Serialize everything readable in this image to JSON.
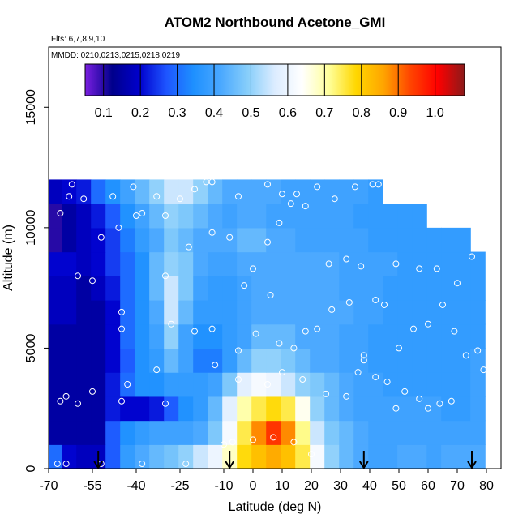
{
  "chart_data": {
    "type": "heatmap",
    "title": "ATOM2 Northbound Acetone_GMI",
    "flights_label": "Flts: 6,7,8,9,10",
    "dates_label": "MMDD: 0210,0213,0215,0218,0219",
    "xlabel": "Latitude (deg N)",
    "ylabel": "Altitude (m)",
    "xlim": [
      -70,
      85
    ],
    "ylim": [
      0,
      17500
    ],
    "x_ticks": [
      -70,
      -55,
      -40,
      -25,
      -10,
      0,
      10,
      20,
      30,
      40,
      50,
      60,
      70,
      80
    ],
    "x_tick_labels": [
      "-70",
      "-55",
      "-40",
      "-25",
      "-10",
      "0",
      "10",
      "20",
      "30",
      "40",
      "50",
      "60",
      "70",
      "80"
    ],
    "y_ticks": [
      0,
      5000,
      10000,
      15000
    ],
    "y_tick_labels": [
      "0",
      "5000",
      "10000",
      "15000"
    ],
    "colorbar": {
      "range": [
        0.05,
        1.08
      ],
      "ticks": [
        0.1,
        0.2,
        0.3,
        0.4,
        0.5,
        0.6,
        0.7,
        0.8,
        0.9,
        1.0
      ],
      "tick_labels": [
        "0.1",
        "0.2",
        "0.3",
        "0.4",
        "0.5",
        "0.6",
        "0.7",
        "0.8",
        "0.9",
        "1.0"
      ],
      "colors": [
        "#7a1fe0",
        "#00008b",
        "#0000cd",
        "#1e55ff",
        "#1e90ff",
        "#4aa8ff",
        "#87cefa",
        "#dcecff",
        "#ffffff",
        "#ffff9a",
        "#ffd700",
        "#ffa500",
        "#ff4500",
        "#ff0000",
        "#8b1a1a"
      ]
    },
    "lat_bins": [
      -68,
      -63,
      -58,
      -53,
      -48,
      -43,
      -38,
      -33,
      -28,
      -23,
      -18,
      -13,
      -8,
      -3,
      2,
      7,
      12,
      17,
      22,
      27,
      32,
      37,
      42,
      47,
      52,
      57,
      62,
      67,
      72,
      77
    ],
    "alt_bins": [
      500,
      1500,
      2500,
      3500,
      4500,
      5500,
      6500,
      7500,
      8500,
      9500,
      10500,
      11500
    ],
    "top_altitude_by_lat": [
      11500,
      11500,
      11500,
      11500,
      11500,
      11500,
      11500,
      11500,
      11500,
      11500,
      11500,
      11500,
      11500,
      11500,
      11500,
      11500,
      11500,
      11500,
      11500,
      11500,
      11500,
      11500,
      11500,
      10500,
      10500,
      10500,
      9500,
      9500,
      9500,
      8500
    ],
    "values": [
      [
        0.3,
        0.2,
        0.18,
        0.18,
        0.28,
        0.38,
        0.42,
        0.45,
        0.47,
        0.5,
        0.55,
        0.6,
        0.68,
        0.78,
        0.82,
        0.85,
        0.82,
        0.75,
        0.62,
        0.5,
        0.45,
        0.42,
        0.4,
        0.4,
        0.42,
        0.42,
        0.4,
        0.42,
        0.42,
        0.42
      ],
      [
        0.15,
        0.15,
        0.15,
        0.15,
        0.28,
        0.35,
        0.38,
        0.4,
        0.4,
        0.4,
        0.42,
        0.48,
        0.62,
        0.75,
        0.88,
        0.95,
        0.88,
        0.72,
        0.55,
        0.48,
        0.45,
        0.42,
        0.4,
        0.4,
        0.4,
        0.4,
        0.4,
        0.4,
        0.4,
        0.4
      ],
      [
        0.15,
        0.15,
        0.15,
        0.15,
        0.22,
        0.2,
        0.2,
        0.22,
        0.28,
        0.35,
        0.38,
        0.45,
        0.58,
        0.7,
        0.75,
        0.78,
        0.75,
        0.65,
        0.5,
        0.45,
        0.42,
        0.4,
        0.4,
        0.4,
        0.4,
        0.4,
        0.4,
        0.38,
        0.38,
        0.4
      ],
      [
        0.15,
        0.15,
        0.15,
        0.15,
        0.22,
        0.3,
        0.35,
        0.35,
        0.38,
        0.38,
        0.38,
        0.4,
        0.48,
        0.58,
        0.62,
        0.6,
        0.55,
        0.5,
        0.48,
        0.45,
        0.42,
        0.4,
        0.4,
        0.38,
        0.38,
        0.38,
        0.38,
        0.38,
        0.38,
        0.4
      ],
      [
        0.15,
        0.15,
        0.15,
        0.15,
        0.2,
        0.28,
        0.35,
        0.38,
        0.45,
        0.4,
        0.32,
        0.32,
        0.38,
        0.45,
        0.5,
        0.5,
        0.48,
        0.45,
        0.42,
        0.42,
        0.4,
        0.4,
        0.38,
        0.38,
        0.38,
        0.38,
        0.38,
        0.38,
        0.38,
        0.4
      ],
      [
        0.15,
        0.15,
        0.15,
        0.15,
        0.2,
        0.3,
        0.35,
        0.4,
        0.5,
        0.4,
        0.35,
        0.35,
        0.38,
        0.4,
        0.45,
        0.45,
        0.45,
        0.42,
        0.42,
        0.42,
        0.4,
        0.4,
        0.38,
        0.38,
        0.38,
        0.38,
        0.38,
        0.38,
        0.38,
        0.38
      ],
      [
        0.18,
        0.18,
        0.15,
        0.15,
        0.2,
        0.3,
        0.35,
        0.42,
        0.55,
        0.45,
        0.38,
        0.38,
        0.38,
        0.4,
        0.42,
        0.42,
        0.42,
        0.42,
        0.42,
        0.42,
        0.42,
        0.4,
        0.4,
        0.38,
        0.38,
        0.38,
        0.38,
        0.38,
        0.38,
        0.38
      ],
      [
        0.18,
        0.18,
        0.15,
        0.18,
        0.22,
        0.3,
        0.35,
        0.45,
        0.55,
        0.48,
        0.4,
        0.38,
        0.38,
        0.4,
        0.42,
        0.42,
        0.42,
        0.42,
        0.42,
        0.42,
        0.4,
        0.4,
        0.4,
        0.38,
        0.38,
        0.38,
        0.38,
        0.38,
        0.38,
        0.38
      ],
      [
        0.2,
        0.2,
        0.18,
        0.2,
        0.25,
        0.3,
        0.35,
        0.45,
        0.5,
        0.48,
        0.42,
        0.4,
        0.4,
        0.42,
        0.42,
        0.42,
        0.42,
        0.42,
        0.42,
        0.42,
        0.4,
        0.4,
        0.4,
        0.4,
        0.38,
        0.38,
        0.38,
        0.38,
        0.38,
        0.38
      ],
      [
        0.1,
        0.15,
        0.18,
        0.2,
        0.25,
        0.32,
        0.38,
        0.42,
        0.48,
        0.45,
        0.42,
        0.42,
        0.42,
        0.45,
        0.45,
        0.42,
        0.42,
        0.4,
        0.4,
        0.4,
        0.4,
        0.4,
        0.38,
        0.38,
        0.38,
        0.38,
        0.38,
        0.38,
        0.38,
        0.38
      ],
      [
        0.1,
        0.15,
        0.18,
        0.22,
        0.28,
        0.35,
        0.4,
        0.45,
        0.5,
        0.48,
        0.45,
        0.42,
        0.4,
        0.42,
        0.42,
        0.4,
        0.4,
        0.4,
        0.4,
        0.4,
        0.4,
        0.38,
        0.38,
        0.38,
        0.38,
        0.38,
        0.38,
        0.38,
        0.38,
        0.38
      ],
      [
        0.18,
        0.2,
        0.22,
        0.3,
        0.35,
        0.4,
        0.45,
        0.5,
        0.55,
        0.55,
        0.5,
        0.45,
        0.42,
        0.42,
        0.42,
        0.42,
        0.4,
        0.4,
        0.4,
        0.4,
        0.4,
        0.4,
        0.38,
        0.38,
        0.38,
        0.38,
        0.38,
        0.38,
        0.38,
        0.38
      ]
    ],
    "sample_points": [
      [
        -67,
        200
      ],
      [
        -64,
        200
      ],
      [
        -52,
        200
      ],
      [
        -38,
        200
      ],
      [
        -23,
        200
      ],
      [
        -10,
        1000
      ],
      [
        -7,
        1100
      ],
      [
        0,
        1200
      ],
      [
        7,
        1300
      ],
      [
        14,
        1100
      ],
      [
        20,
        600
      ],
      [
        -66,
        2800
      ],
      [
        -64,
        3000
      ],
      [
        -60,
        2700
      ],
      [
        -55,
        3200
      ],
      [
        -45,
        2800
      ],
      [
        -43,
        3500
      ],
      [
        -30,
        2700
      ],
      [
        -33,
        4100
      ],
      [
        -13,
        4300
      ],
      [
        -5,
        3700
      ],
      [
        5,
        3500
      ],
      [
        10,
        4000
      ],
      [
        17,
        3700
      ],
      [
        25,
        3100
      ],
      [
        32,
        3000
      ],
      [
        36,
        4000
      ],
      [
        38,
        4500
      ],
      [
        42,
        3800
      ],
      [
        46,
        3600
      ],
      [
        49,
        2500
      ],
      [
        52,
        3200
      ],
      [
        57,
        2900
      ],
      [
        60,
        2500
      ],
      [
        64,
        2700
      ],
      [
        68,
        2800
      ],
      [
        -60,
        8000
      ],
      [
        -55,
        7800
      ],
      [
        -45,
        6500
      ],
      [
        -45,
        5800
      ],
      [
        -30,
        8000
      ],
      [
        -28,
        6000
      ],
      [
        -20,
        5700
      ],
      [
        -14,
        5800
      ],
      [
        -5,
        4900
      ],
      [
        1,
        5600
      ],
      [
        6,
        7200
      ],
      [
        9,
        5200
      ],
      [
        14,
        5000
      ],
      [
        18,
        5700
      ],
      [
        22,
        5800
      ],
      [
        27,
        6600
      ],
      [
        33,
        6900
      ],
      [
        38,
        4700
      ],
      [
        42,
        7000
      ],
      [
        45,
        6800
      ],
      [
        50,
        5000
      ],
      [
        55,
        5800
      ],
      [
        60,
        6000
      ],
      [
        65,
        6800
      ],
      [
        69,
        5700
      ],
      [
        73,
        4700
      ],
      [
        77,
        4900
      ],
      [
        79,
        4100
      ],
      [
        -52,
        9600
      ],
      [
        -46,
        10000
      ],
      [
        -40,
        10500
      ],
      [
        -38,
        10600
      ],
      [
        -30,
        10500
      ],
      [
        -22,
        9200
      ],
      [
        -14,
        9800
      ],
      [
        -8,
        9600
      ],
      [
        -3,
        7600
      ],
      [
        0,
        8300
      ],
      [
        5,
        9400
      ],
      [
        9,
        10200
      ],
      [
        13,
        11000
      ],
      [
        18,
        10900
      ],
      [
        26,
        8500
      ],
      [
        32,
        8700
      ],
      [
        37,
        8400
      ],
      [
        43,
        11800
      ],
      [
        49,
        8500
      ],
      [
        57,
        8300
      ],
      [
        63,
        8300
      ],
      [
        70,
        7700
      ],
      [
        75,
        8800
      ],
      [
        79,
        9200
      ],
      [
        -66,
        10600
      ],
      [
        -63,
        11300
      ],
      [
        -62,
        11800
      ],
      [
        -58,
        11200
      ],
      [
        -48,
        11300
      ],
      [
        -41,
        11700
      ],
      [
        -33,
        11300
      ],
      [
        -25,
        11200
      ],
      [
        -20,
        11600
      ],
      [
        -16,
        11900
      ],
      [
        -14,
        11900
      ],
      [
        -5,
        11300
      ],
      [
        5,
        11800
      ],
      [
        10,
        11400
      ],
      [
        15,
        11400
      ],
      [
        22,
        11700
      ],
      [
        28,
        11200
      ],
      [
        35,
        11700
      ],
      [
        41,
        11800
      ],
      [
        48,
        11400
      ],
      [
        58,
        11600
      ]
    ],
    "flight_arrows_lat": [
      -53,
      -8,
      38,
      75
    ]
  }
}
